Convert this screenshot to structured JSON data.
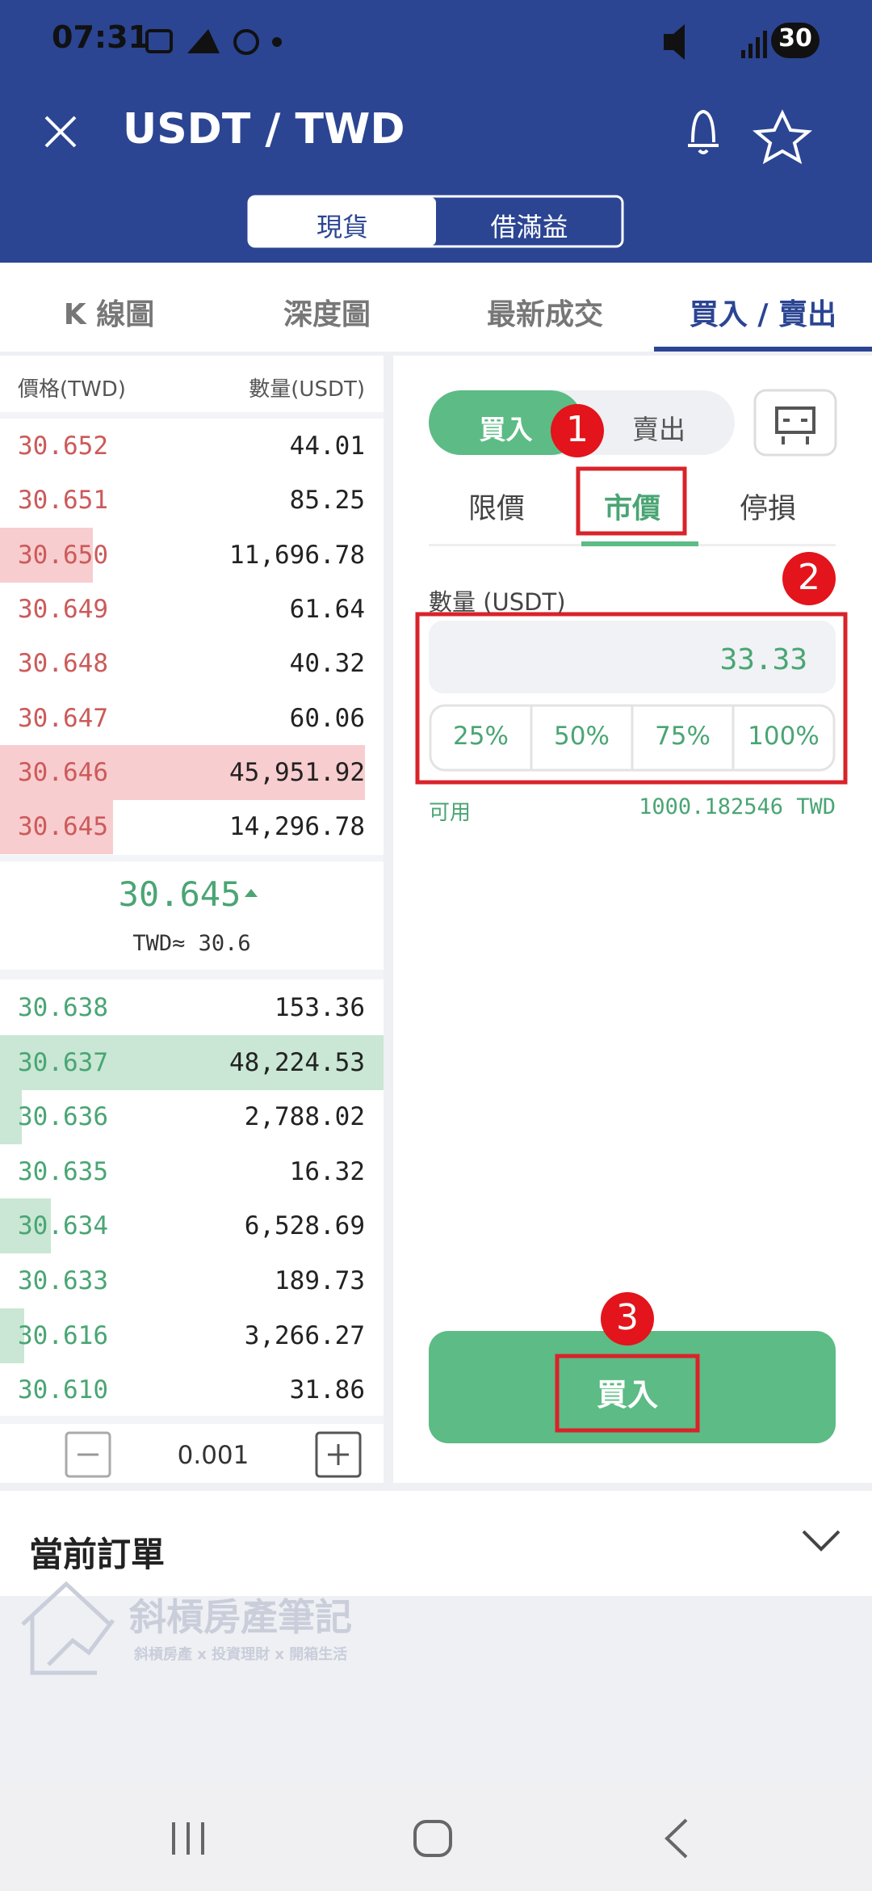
{
  "status_bar": {
    "time": "07:31",
    "battery": "30"
  },
  "header": {
    "title": "USDT / TWD",
    "mode_tabs": [
      "現貨",
      "借滿益"
    ]
  },
  "tabs": [
    "K 線圖",
    "深度圖",
    "最新成交",
    "買入 / 賣出"
  ],
  "order_book": {
    "headers": [
      "價格(TWD)",
      "數量(USDT)"
    ],
    "asks": [
      [
        "30.652",
        "44.01"
      ],
      [
        "30.651",
        "85.25"
      ],
      [
        "30.650",
        "11,696.78"
      ],
      [
        "30.649",
        "61.64"
      ],
      [
        "30.648",
        "40.32"
      ],
      [
        "30.647",
        "60.06"
      ],
      [
        "30.646",
        "45,951.92"
      ],
      [
        "30.645",
        "14,296.78"
      ]
    ],
    "last_price": "30.645",
    "twd_estimate": "TWD≈ 30.6",
    "bids": [
      [
        "30.638",
        "153.36"
      ],
      [
        "30.637",
        "48,224.53"
      ],
      [
        "30.636",
        "2,788.02"
      ],
      [
        "30.635",
        "16.32"
      ],
      [
        "30.634",
        "6,528.69"
      ],
      [
        "30.633",
        "189.73"
      ],
      [
        "30.616",
        "3,266.27"
      ],
      [
        "30.610",
        "31.86"
      ]
    ],
    "step": "0.001"
  },
  "order_form": {
    "sides": [
      "買入",
      "賣出"
    ],
    "order_types": [
      "限價",
      "市價",
      "停損"
    ],
    "quantity_label": "數量 (USDT)",
    "quantity": "33.33",
    "percentages": [
      "25%",
      "50%",
      "75%",
      "100%"
    ],
    "available_label": "可用",
    "available": "1000.182546 TWD",
    "submit": "買入"
  },
  "annotations": [
    "1",
    "2",
    "3"
  ],
  "orders": {
    "title": "當前訂單"
  },
  "watermark": {
    "title": "斜槓房產筆記",
    "subtitle": "斜槓房產 x 投資理財 x 開箱生活"
  }
}
